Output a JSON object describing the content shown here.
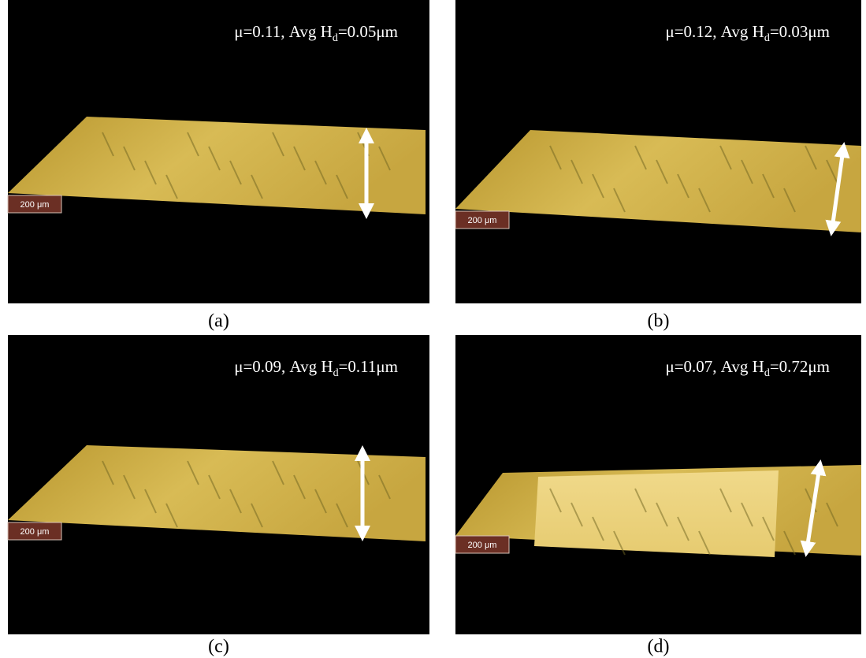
{
  "panels": [
    {
      "annotation": {
        "main": "μ=0.11, Avg H",
        "subscript": "d",
        "tail": "=0.05μm"
      },
      "scale_bar": "200 μm",
      "caption": "(a)"
    },
    {
      "annotation": {
        "main": "μ=0.12, Avg H",
        "subscript": "d",
        "tail": "=0.03μm"
      },
      "scale_bar": "200 μm",
      "caption": "(b)"
    },
    {
      "annotation": {
        "main": "μ=0.09, Avg H",
        "subscript": "d",
        "tail": "=0.11μm"
      },
      "scale_bar": "200 μm",
      "caption": "(c)"
    },
    {
      "annotation": {
        "main": "μ=0.07, Avg H",
        "subscript": "d",
        "tail": "=0.72μm"
      },
      "scale_bar": "200 μm",
      "caption": "(d)"
    }
  ]
}
